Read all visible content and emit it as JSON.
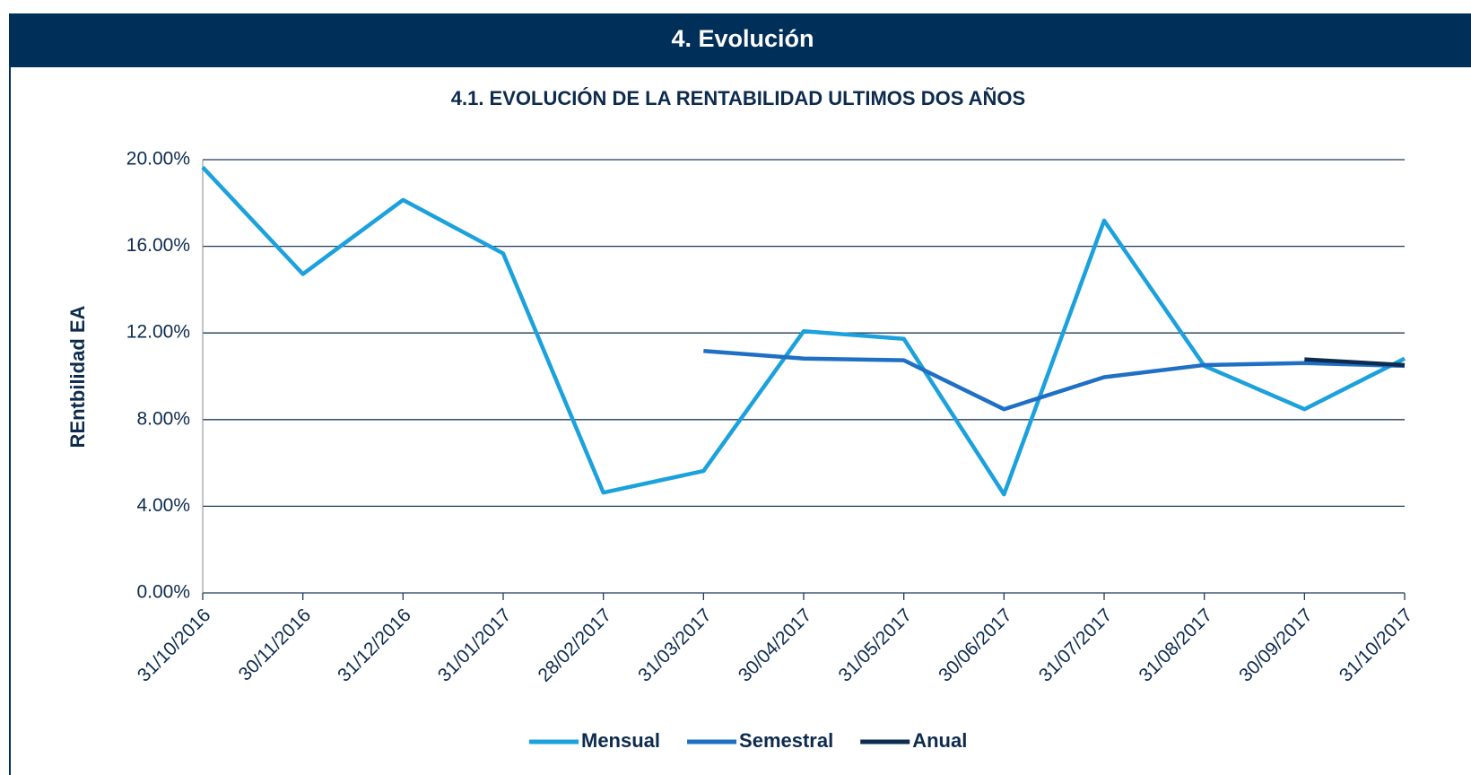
{
  "header": {
    "title": "4. Evolución"
  },
  "chart_data": {
    "type": "line",
    "title": "4.1. EVOLUCIÓN DE LA RENTABILIDAD ULTIMOS DOS AÑOS",
    "y_label": "REntbilidad EA",
    "categories": [
      "31/10/2016",
      "30/11/2016",
      "31/12/2016",
      "31/01/2017",
      "28/02/2017",
      "31/03/2017",
      "30/04/2017",
      "31/05/2017",
      "30/06/2017",
      "31/07/2017",
      "31/08/2017",
      "30/09/2017",
      "31/10/2017"
    ],
    "series": [
      {
        "name": "Mensual",
        "color": "#1ba1dc",
        "values": [
          19.65,
          14.72,
          18.14,
          15.67,
          4.63,
          5.63,
          12.08,
          11.73,
          4.55,
          17.19,
          10.48,
          8.48,
          10.82
        ]
      },
      {
        "name": "Semestral",
        "color": "#1f6fc5",
        "values": [
          null,
          null,
          null,
          null,
          null,
          11.17,
          10.82,
          10.74,
          8.48,
          9.96,
          10.52,
          10.61,
          10.48
        ]
      },
      {
        "name": "Anual",
        "color": "#0d2b4e",
        "values": [
          null,
          null,
          null,
          null,
          null,
          null,
          null,
          null,
          null,
          null,
          null,
          10.78,
          10.52
        ]
      }
    ],
    "ylim": [
      0,
      20
    ],
    "yticks": [
      {
        "value": 0,
        "label": "0.00%"
      },
      {
        "value": 4,
        "label": "4.00%"
      },
      {
        "value": 8,
        "label": "8.00%"
      },
      {
        "value": 12,
        "label": "12.00%"
      },
      {
        "value": 16,
        "label": "16.00%"
      },
      {
        "value": 20,
        "label": "20.00%"
      }
    ],
    "grid": true,
    "legend": "bottom"
  }
}
